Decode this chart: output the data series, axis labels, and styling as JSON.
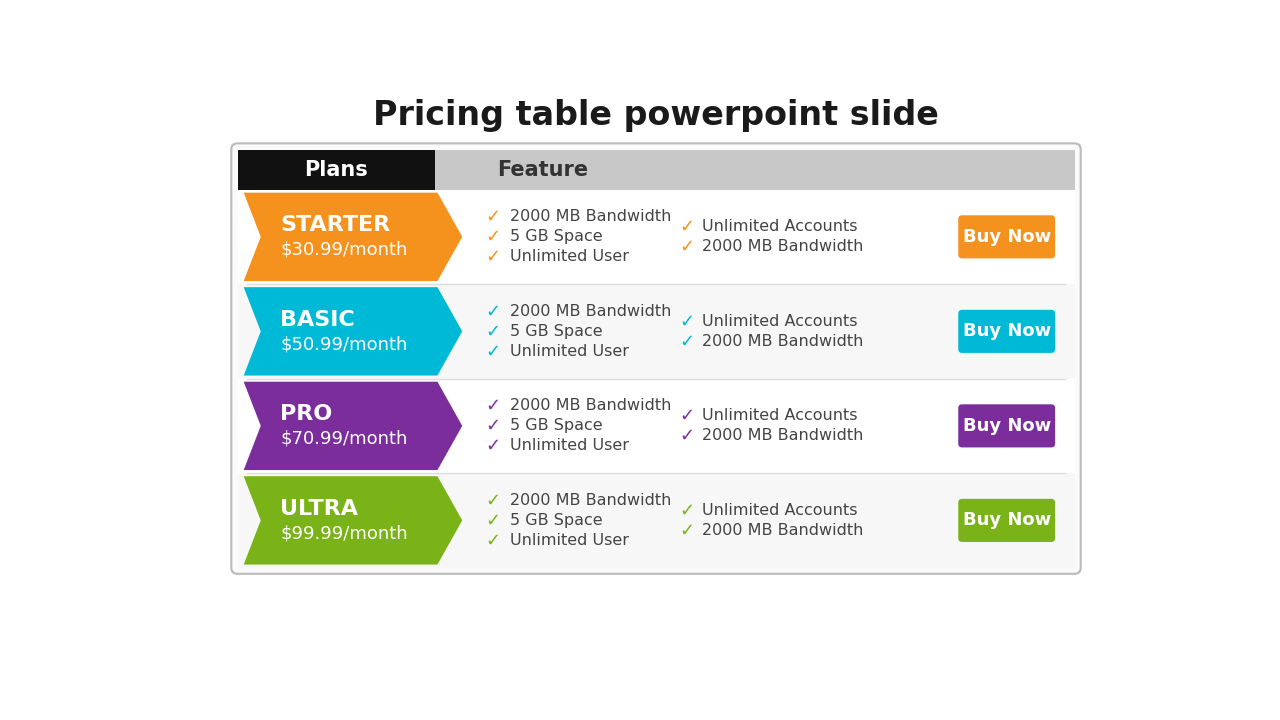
{
  "title": "Pricing table powerpoint slide",
  "title_fontsize": 24,
  "background_color": "#ffffff",
  "plans": [
    {
      "name": "STARTER",
      "price": "$30.99/month",
      "color": "#f5921e",
      "row_bg": "#ffffff"
    },
    {
      "name": "BASIC",
      "price": "$50.99/month",
      "color": "#00b9d6",
      "row_bg": "#f7f7f7"
    },
    {
      "name": "PRO",
      "price": "$70.99/month",
      "color": "#7b2d9b",
      "row_bg": "#ffffff"
    },
    {
      "name": "ULTRA",
      "price": "$99.99/month",
      "color": "#7ab317",
      "row_bg": "#f7f7f7"
    }
  ],
  "features_col1": [
    "2000 MB Bandwidth",
    "5 GB Space",
    "Unlimited User"
  ],
  "features_col2": [
    "Unlimited Accounts",
    "2000 MB Bandwidth"
  ],
  "button_text": "Buy Now",
  "header_plans_bg": "#111111",
  "header_feature_bg": "#c8c8c8",
  "table_border_color": "#bbbbbb",
  "separator_color": "#dddddd",
  "text_color": "#444444"
}
